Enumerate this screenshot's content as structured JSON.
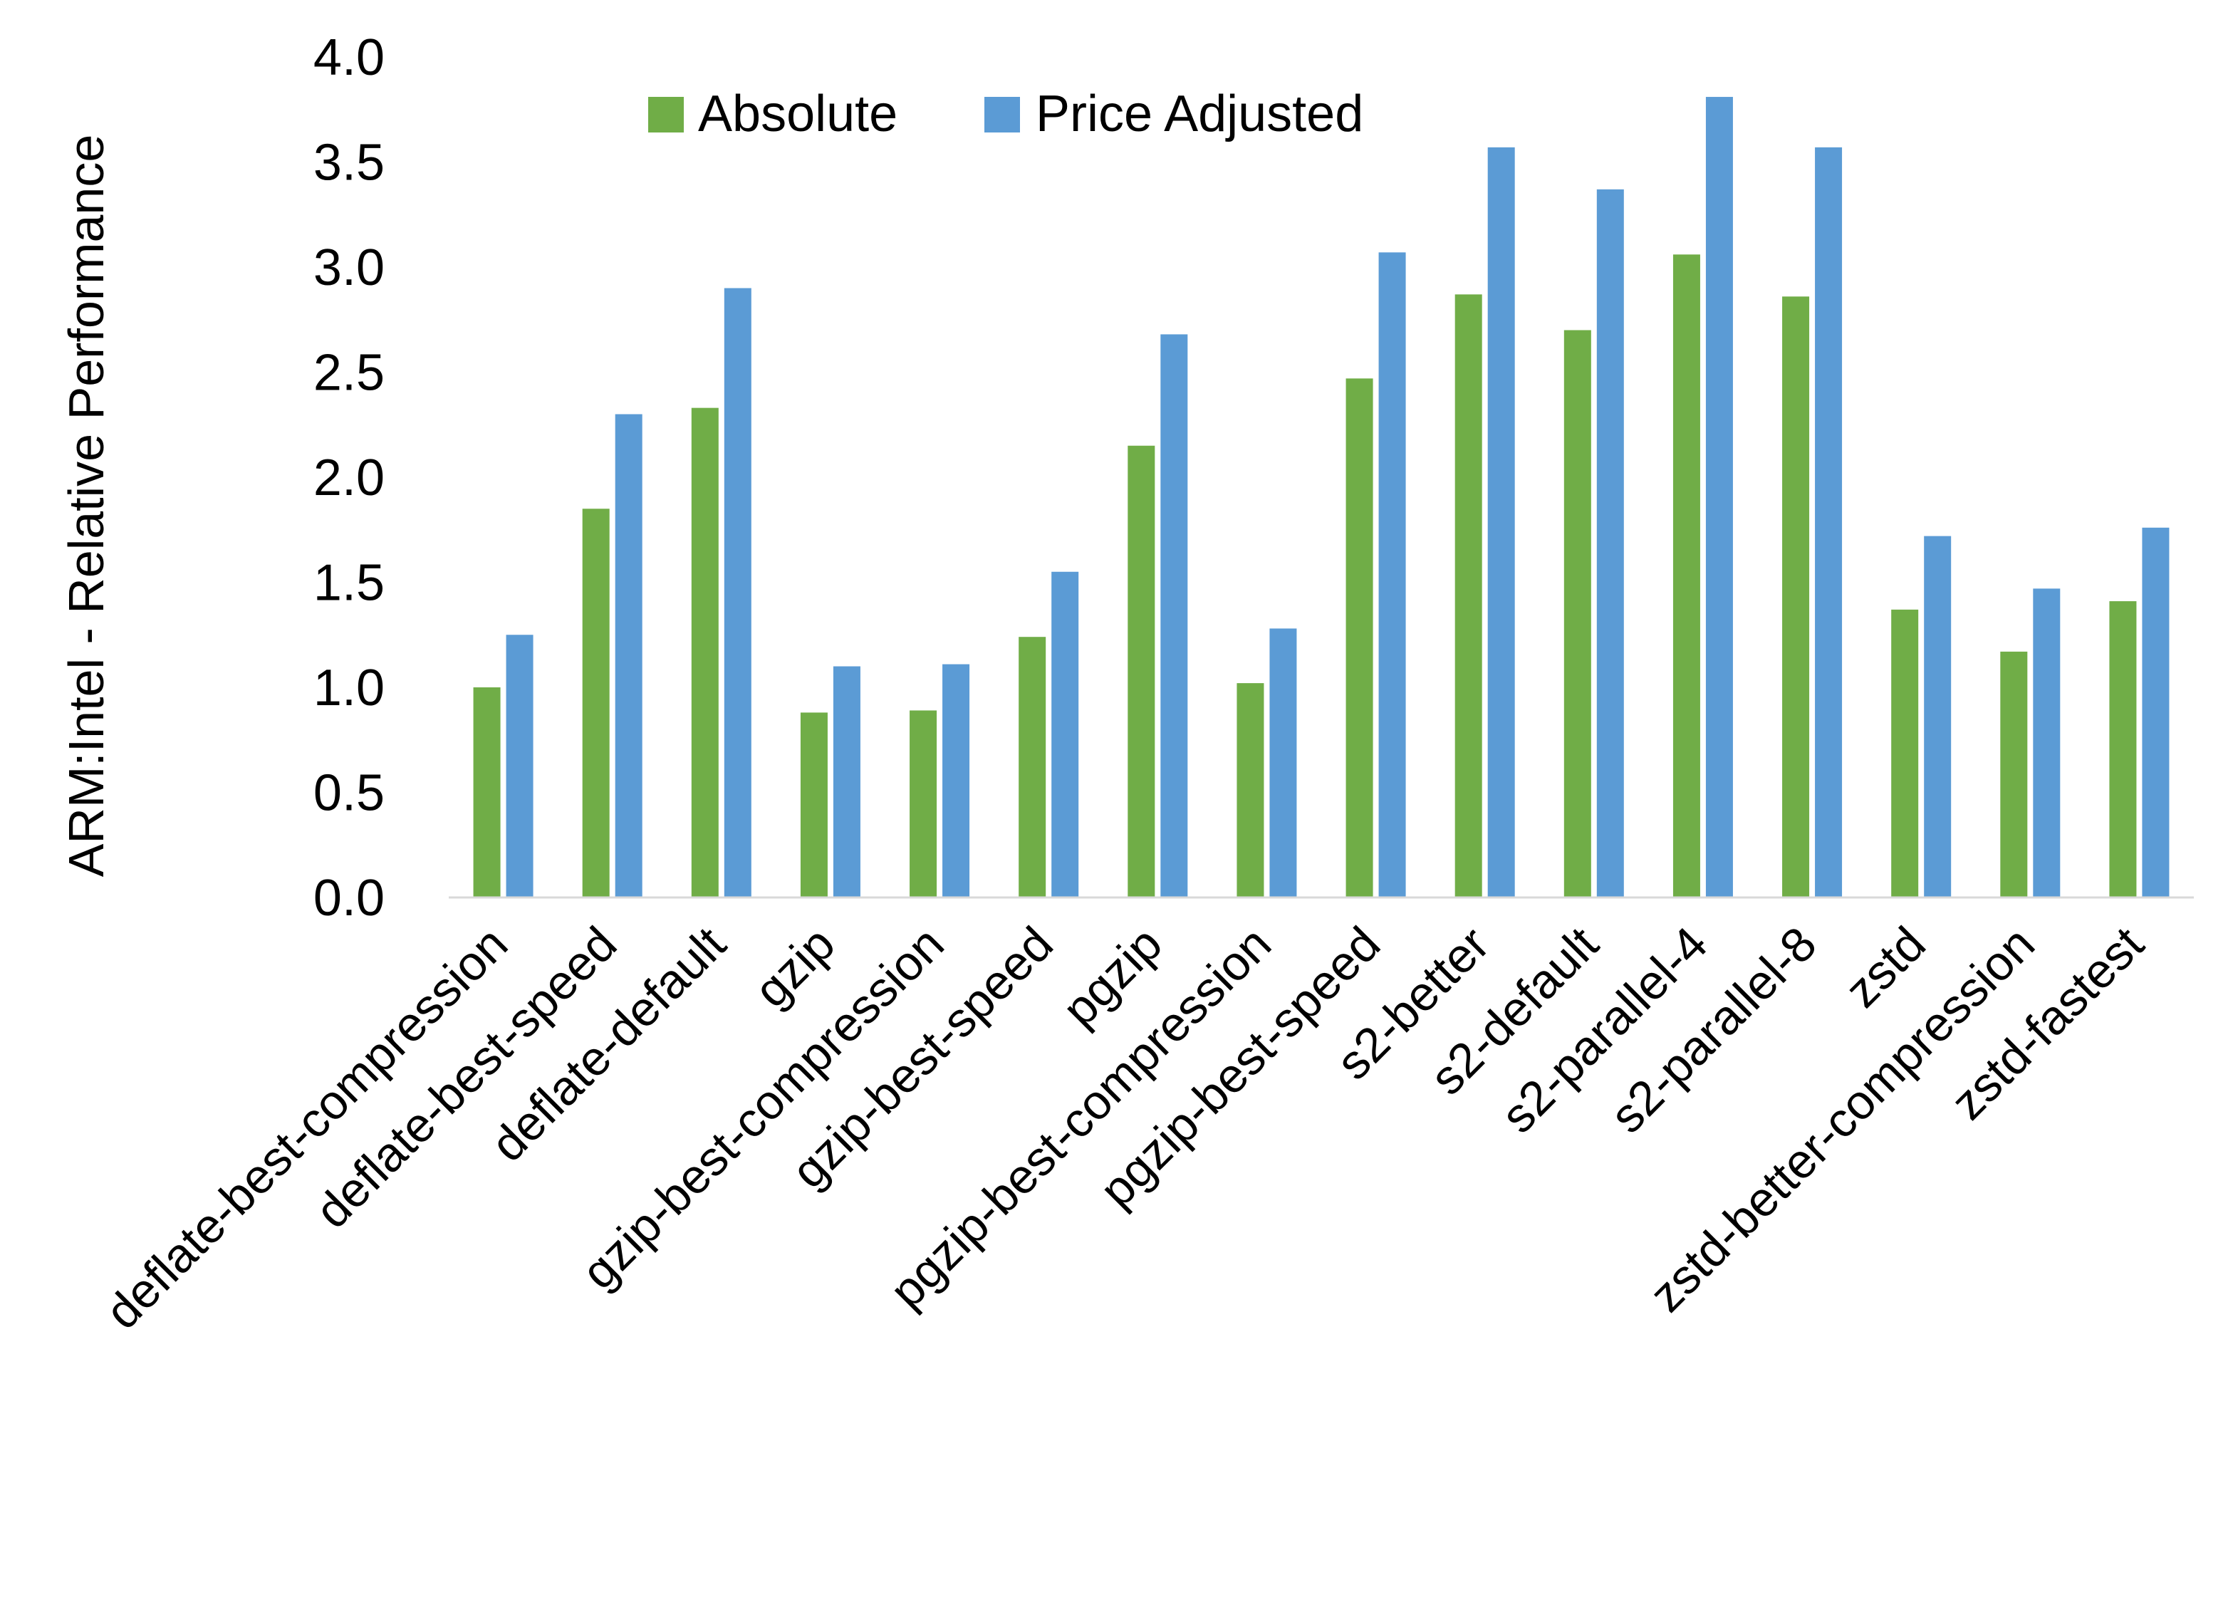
{
  "chart_data": {
    "type": "bar",
    "title": "",
    "xlabel": "",
    "ylabel": "ARM:Intel - Relative Performance",
    "ylim": [
      0,
      4.0
    ],
    "yticks": [
      "0.0",
      "0.5",
      "1.0",
      "1.5",
      "2.0",
      "2.5",
      "3.0",
      "3.5",
      "4.0"
    ],
    "grid": false,
    "legend_position": "top",
    "categories": [
      "deflate-best-compression",
      "deflate-best-speed",
      "deflate-default",
      "gzip",
      "gzip-best-compression",
      "gzip-best-speed",
      "pgzip",
      "pgzip-best-compression",
      "pgzip-best-speed",
      "s2-better",
      "s2-default",
      "s2-parallel-4",
      "s2-parallel-8",
      "zstd",
      "zstd-better-compression",
      "zstd-fastest"
    ],
    "series": [
      {
        "name": "Absolute",
        "color": "#70AD47",
        "values": [
          1.0,
          1.85,
          2.33,
          0.88,
          0.89,
          1.24,
          2.15,
          1.02,
          2.47,
          2.87,
          2.7,
          3.06,
          2.86,
          1.37,
          1.17,
          1.41
        ]
      },
      {
        "name": "Price Adjusted",
        "color": "#5B9BD5",
        "values": [
          1.25,
          2.3,
          2.9,
          1.1,
          1.11,
          1.55,
          2.68,
          1.28,
          3.07,
          3.57,
          3.37,
          3.81,
          3.57,
          1.72,
          1.47,
          1.76
        ]
      }
    ]
  }
}
